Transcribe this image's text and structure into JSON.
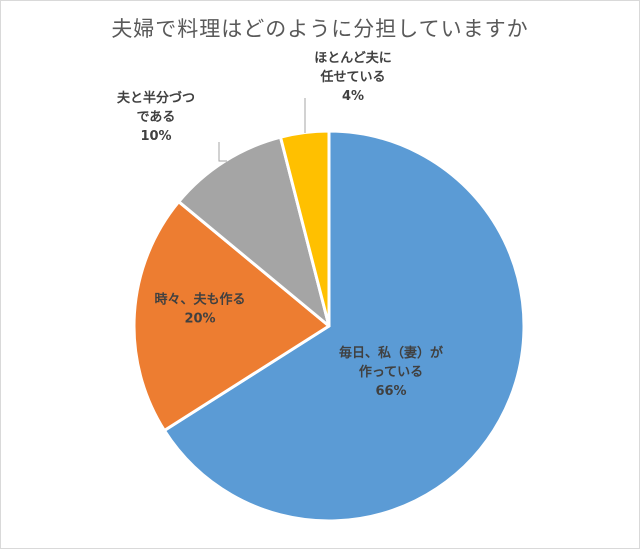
{
  "chart_data": {
    "type": "pie",
    "title": "夫婦で料理はどのように分担していますか",
    "start_angle_deg": 0,
    "direction": "clockwise",
    "slices": [
      {
        "lines": [
          "毎日、私（妻）が",
          "作っている"
        ],
        "pct_label": "66%",
        "value": 66,
        "color": "#5b9bd5",
        "label_color": "#404040"
      },
      {
        "lines": [
          "時々、夫も作る"
        ],
        "pct_label": "20%",
        "value": 20,
        "color": "#ed7d31",
        "label_color": "#404040"
      },
      {
        "lines": [
          "夫と半分づつ",
          "である"
        ],
        "pct_label": "10%",
        "value": 10,
        "color": "#a5a5a5",
        "label_color": "#404040"
      },
      {
        "lines": [
          "ほとんど夫に",
          "任せている"
        ],
        "pct_label": "4%",
        "value": 4,
        "color": "#ffc000",
        "label_color": "#404040"
      }
    ],
    "legend": "none",
    "leader_line_color": "#a6a6a6",
    "slice_border_color": "#ffffff"
  }
}
